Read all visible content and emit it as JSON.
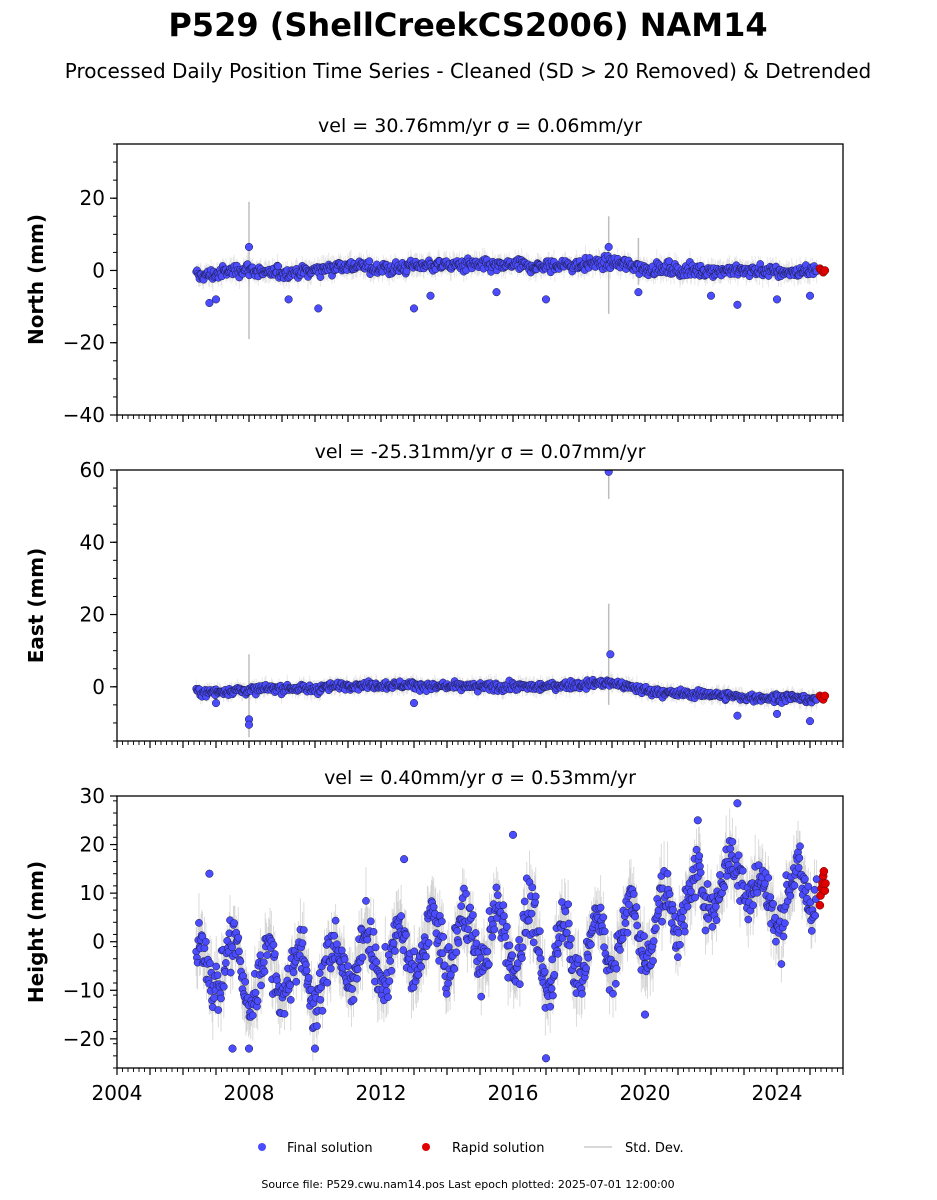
{
  "figure": {
    "title": "P529 (ShellCreekCS2006) NAM14",
    "subtitle": "Processed Daily Position Time Series - Cleaned (SD > 20 Removed) & Detrended",
    "footer": "Source file: P529.cwu.nam14.pos  Last epoch plotted: 2025-07-01 12:00:00"
  },
  "legend": {
    "items": [
      {
        "label": "Final solution",
        "kind": "dot",
        "color": "#4b4bff"
      },
      {
        "label": "Rapid solution",
        "kind": "dot",
        "color": "#e00000"
      },
      {
        "label": "Std. Dev.",
        "kind": "line",
        "color": "#cccccc"
      }
    ]
  },
  "colors": {
    "final": "#4b4bff",
    "final_edge": "#1a1a40",
    "rapid": "#e00000",
    "stddev": "#bdbdbd"
  },
  "chart_data": [
    {
      "type": "scatter",
      "title": "vel = 30.76mm/yr   σ = 0.06mm/yr",
      "ylabel": "North (mm)",
      "xlim": [
        2004,
        2026
      ],
      "ylim": [
        -40,
        35
      ],
      "yticks": [
        -40,
        -20,
        0,
        20
      ],
      "xticks": [
        2004,
        2008,
        2012,
        2016,
        2020,
        2024
      ],
      "xtick_labels_shown": false,
      "data_span": [
        2006.4,
        2025.2
      ],
      "series": [
        {
          "name": "Final solution",
          "kind": "final",
          "x": [
            2006.5,
            2007.0,
            2007.5,
            2008.0,
            2008.5,
            2009.0,
            2009.5,
            2010.0,
            2010.5,
            2011.0,
            2011.5,
            2012.0,
            2012.5,
            2013.0,
            2013.5,
            2014.0,
            2014.5,
            2015.0,
            2015.5,
            2016.0,
            2016.5,
            2017.0,
            2017.5,
            2018.0,
            2018.5,
            2019.0,
            2019.5,
            2020.0,
            2020.5,
            2021.0,
            2021.5,
            2022.0,
            2022.5,
            2023.0,
            2023.5,
            2024.0,
            2024.5,
            2025.0
          ],
          "y": [
            -1.5,
            -1.0,
            0.0,
            0.5,
            -1.0,
            -0.5,
            -0.5,
            0.0,
            1.0,
            1.5,
            1.0,
            0.5,
            0.5,
            1.5,
            1.5,
            1.5,
            1.5,
            1.5,
            1.0,
            1.5,
            1.0,
            1.0,
            1.5,
            1.5,
            2.0,
            2.0,
            1.5,
            0.5,
            0.5,
            0.0,
            0.0,
            0.0,
            0.0,
            0.0,
            0.0,
            -0.5,
            -0.5,
            0.0
          ],
          "outliers": [
            [
              2006.8,
              -9
            ],
            [
              2007.0,
              -8
            ],
            [
              2008.0,
              6.5
            ],
            [
              2009.2,
              -8
            ],
            [
              2010.1,
              -10.5
            ],
            [
              2013.0,
              -10.5
            ],
            [
              2013.5,
              -7
            ],
            [
              2015.5,
              -6
            ],
            [
              2017.0,
              -8
            ],
            [
              2018.9,
              6.5
            ],
            [
              2019.8,
              -6
            ],
            [
              2022.0,
              -7
            ],
            [
              2022.8,
              -9.5
            ],
            [
              2024.0,
              -8
            ],
            [
              2025.0,
              -7
            ]
          ],
          "spread": 2.0
        },
        {
          "name": "Rapid solution",
          "kind": "rapid",
          "x": [
            2025.3,
            2025.35,
            2025.4,
            2025.45
          ],
          "y": [
            0.5,
            0.0,
            -0.5,
            0.0
          ]
        }
      ],
      "stddev_spikes": [
        [
          2008.0,
          -19,
          19
        ],
        [
          2018.9,
          -12,
          15
        ],
        [
          2019.8,
          -4,
          9
        ]
      ],
      "stddev_typical": 2.5
    },
    {
      "type": "scatter",
      "title": "vel = -25.31mm/yr   σ = 0.07mm/yr",
      "ylabel": "East (mm)",
      "xlim": [
        2004,
        2026
      ],
      "ylim": [
        -15,
        60
      ],
      "yticks": [
        0,
        20,
        40,
        60
      ],
      "xticks": [
        2004,
        2008,
        2012,
        2016,
        2020,
        2024
      ],
      "xtick_labels_shown": false,
      "data_span": [
        2006.4,
        2025.2
      ],
      "series": [
        {
          "name": "Final solution",
          "kind": "final",
          "x": [
            2006.5,
            2007.0,
            2007.5,
            2008.0,
            2008.5,
            2009.0,
            2009.5,
            2010.0,
            2010.5,
            2011.0,
            2011.5,
            2012.0,
            2012.5,
            2013.0,
            2013.5,
            2014.0,
            2014.5,
            2015.0,
            2015.5,
            2016.0,
            2016.5,
            2017.0,
            2017.5,
            2018.0,
            2018.5,
            2019.0,
            2019.5,
            2020.0,
            2020.5,
            2021.0,
            2021.5,
            2022.0,
            2022.5,
            2023.0,
            2023.5,
            2024.0,
            2024.5,
            2025.0
          ],
          "y": [
            -1.5,
            -1.5,
            -1.0,
            -1.0,
            -0.5,
            -0.5,
            -0.5,
            -0.5,
            0.0,
            0.5,
            0.5,
            0.5,
            0.5,
            0.5,
            0.0,
            0.0,
            0.0,
            0.0,
            0.0,
            0.0,
            0.0,
            0.0,
            0.5,
            0.5,
            1.0,
            1.0,
            0.0,
            -1.0,
            -1.5,
            -2.0,
            -2.0,
            -2.0,
            -2.5,
            -3.0,
            -3.0,
            -3.0,
            -3.0,
            -3.5
          ],
          "outliers": [
            [
              2018.9,
              59.5
            ],
            [
              2018.95,
              9.0
            ],
            [
              2008.0,
              -9.0
            ],
            [
              2008.0,
              -10.5
            ],
            [
              2007.0,
              -4.5
            ],
            [
              2013.0,
              -4.5
            ],
            [
              2022.8,
              -8
            ],
            [
              2024.0,
              -7.5
            ],
            [
              2025.0,
              -9.5
            ]
          ],
          "spread": 1.3
        },
        {
          "name": "Rapid solution",
          "kind": "rapid",
          "x": [
            2025.3,
            2025.35,
            2025.4,
            2025.45
          ],
          "y": [
            -2.5,
            -3.0,
            -3.5,
            -2.5
          ]
        }
      ],
      "stddev_spikes": [
        [
          2018.9,
          52,
          60
        ],
        [
          2018.9,
          -5,
          23
        ],
        [
          2008.0,
          -14,
          9
        ]
      ],
      "stddev_typical": 2.0
    },
    {
      "type": "scatter",
      "title": "vel = 0.40mm/yr   σ = 0.53mm/yr",
      "ylabel": "Height (mm)",
      "xlim": [
        2004,
        2026
      ],
      "ylim": [
        -26,
        30
      ],
      "yticks": [
        -20,
        -10,
        0,
        10,
        20,
        30
      ],
      "xticks": [
        2004,
        2008,
        2012,
        2016,
        2020,
        2024
      ],
      "xtick_labels": [
        "2004",
        "2008",
        "2012",
        "2016",
        "2020",
        "2024"
      ],
      "xtick_labels_shown": true,
      "data_span": [
        2006.4,
        2025.2
      ],
      "series": [
        {
          "name": "Final solution",
          "kind": "final",
          "x": [
            2006.5,
            2007.0,
            2007.5,
            2008.0,
            2008.5,
            2009.0,
            2009.5,
            2010.0,
            2010.5,
            2011.0,
            2011.5,
            2012.0,
            2012.5,
            2013.0,
            2013.5,
            2014.0,
            2014.5,
            2015.0,
            2015.5,
            2016.0,
            2016.5,
            2017.0,
            2017.5,
            2018.0,
            2018.5,
            2019.0,
            2019.5,
            2020.0,
            2020.5,
            2021.0,
            2021.5,
            2022.0,
            2022.5,
            2023.0,
            2023.5,
            2024.0,
            2024.5,
            2025.0
          ],
          "y": [
            -6,
            -5,
            -4,
            -9,
            -6,
            -7,
            -6,
            -9,
            -5,
            -4,
            -3,
            -4,
            -2,
            -3,
            1,
            -1,
            2,
            -1,
            2,
            -1,
            3,
            -6,
            1,
            -4,
            1,
            -2,
            4,
            1,
            5,
            7,
            9,
            11,
            12,
            16,
            8,
            7,
            10,
            12
          ],
          "outliers": [
            [
              2006.8,
              14
            ],
            [
              2007.5,
              -22
            ],
            [
              2008.0,
              -22
            ],
            [
              2010.0,
              -22
            ],
            [
              2012.7,
              17
            ],
            [
              2017.0,
              -24
            ],
            [
              2016.0,
              22
            ],
            [
              2022.8,
              28.5
            ],
            [
              2021.6,
              25
            ],
            [
              2020.0,
              -15
            ]
          ],
          "spread": 6.0,
          "annual_amp": 5.0
        },
        {
          "name": "Rapid solution",
          "kind": "rapid",
          "x": [
            2025.3,
            2025.32,
            2025.35,
            2025.38,
            2025.4,
            2025.42,
            2025.45,
            2025.47
          ],
          "y": [
            7.5,
            9.5,
            11,
            12,
            13.5,
            14.5,
            10.5,
            12
          ]
        }
      ],
      "stddev_typical": 5.0
    }
  ]
}
